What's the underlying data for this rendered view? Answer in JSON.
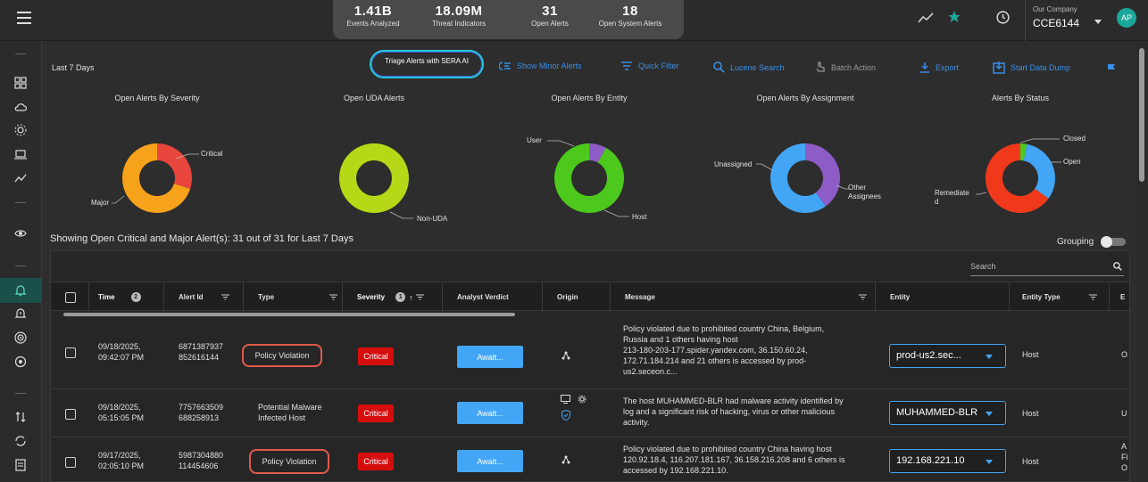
{
  "stats": [
    {
      "value": "1.41B",
      "label": "Events Analyzed"
    },
    {
      "value": "18.09M",
      "label": "Threat Indicators"
    },
    {
      "value": "31",
      "label": "Open Alerts"
    },
    {
      "value": "18",
      "label": "Open System Alerts"
    }
  ],
  "company": {
    "label": "Our Company",
    "value": "CCE6144"
  },
  "user": {
    "initials": "AP"
  },
  "colors": {
    "accent": "#42a5f5",
    "critical": "#d50d0d",
    "brand": "#1aa89a"
  },
  "toolbar": {
    "period": "Last 7 Days",
    "triage": "Triage Alerts with SERA AI",
    "show_minor": "Show Minor Alerts",
    "quick_filter": "Quick Filter",
    "lucene": "Lucene Search",
    "batch": "Batch Action",
    "export": "Export",
    "dump": "Start Data Dump"
  },
  "charts": {
    "severity": {
      "title": "Open Alerts By Severity",
      "labels": [
        "Critical",
        "Major"
      ]
    },
    "uda": {
      "title": "Open UDA Alerts",
      "labels": [
        "Non-UDA"
      ]
    },
    "entity": {
      "title": "Open Alerts By Entity",
      "labels": [
        "User",
        "Host"
      ]
    },
    "assignment": {
      "title": "Open Alerts By Assignment",
      "labels": [
        "Unassigned",
        "Other",
        "Assignees"
      ]
    },
    "status": {
      "title": "Alerts By Status",
      "labels": [
        "Closed",
        "Open",
        "Remediate",
        "d"
      ]
    }
  },
  "chart_data": [
    {
      "type": "pie",
      "categories": [
        "Critical",
        "Major"
      ],
      "values": [
        30,
        70
      ],
      "colors": [
        "#e8453c",
        "#f7a21b"
      ]
    },
    {
      "type": "pie",
      "categories": [
        "Non-UDA"
      ],
      "values": [
        100
      ],
      "colors": [
        "#b5d916"
      ]
    },
    {
      "type": "pie",
      "categories": [
        "User",
        "Host"
      ],
      "values": [
        8,
        92
      ],
      "colors": [
        "#8e5cc7",
        "#4cc91c"
      ]
    },
    {
      "type": "pie",
      "categories": [
        "Unassigned",
        "Other Assignees"
      ],
      "values": [
        40,
        60
      ],
      "colors": [
        "#8e5cc7",
        "#42a5f5"
      ]
    },
    {
      "type": "pie",
      "categories": [
        "Closed",
        "Open",
        "Remediated"
      ],
      "values": [
        3,
        32,
        65
      ],
      "colors": [
        "#4cc91c",
        "#42a5f5",
        "#f0391b"
      ]
    }
  ],
  "summary": "Showing Open Critical and Major Alert(s): 31 out of 31 for Last 7 Days",
  "grouping": "Grouping",
  "search_placeholder": "Search",
  "columns": {
    "time": "Time",
    "time_badge": "2",
    "alert_id": "Alert Id",
    "type": "Type",
    "severity": "Severity",
    "severity_badge": "1",
    "verdict": "Analyst Verdict",
    "origin": "Origin",
    "message": "Message",
    "entity": "Entity",
    "entity_type": "Entity Type",
    "more": "E"
  },
  "rows": [
    {
      "time": [
        "09/18/2025,",
        "09:42:07 PM"
      ],
      "id": [
        "6871387937",
        "852616144"
      ],
      "type": "Policy Violation",
      "severity": "Critical",
      "verdict": "Await...",
      "message": [
        "Policy violated due to prohibited country China, Belgium,",
        "Russia and 1 others having host",
        "213-180-203-177.spider.yandex.com, 36.150.60.24,",
        "172.71.184.214 and 21 others is accessed by prod-",
        "us2.seceon.c..."
      ],
      "entity": "prod-us2.sec...",
      "entity_type": "Host",
      "more": "O"
    },
    {
      "time": [
        "09/18/2025,",
        "05:15:05 PM"
      ],
      "id": [
        "7757663509",
        "688258913"
      ],
      "type": "Potential Malware Infected Host",
      "type_lines": [
        "Potential Malware",
        "Infected Host"
      ],
      "severity": "Critical",
      "verdict": "Await...",
      "message": [
        "The host MUHAMMED-BLR had malware activity identified by",
        "log and a significant risk of hacking, virus or other malicious",
        "activity."
      ],
      "entity": "MUHAMMED-BLR",
      "entity_type": "Host",
      "more": "U"
    },
    {
      "time": [
        "09/17/2025,",
        "02:05:10 PM"
      ],
      "id": [
        "5987304880",
        "114454606"
      ],
      "type": "Policy Violation",
      "severity": "Critical",
      "verdict": "Await...",
      "message": [
        "Policy violated due to prohibited country China having host",
        "120.92.18.4, 116.207.181.167, 36.158.216.208 and 6 others is",
        "accessed by 192.168.221.10."
      ],
      "entity": "192.168.221.10",
      "entity_type": "Host",
      "more": [
        "A",
        "Fi",
        "O"
      ]
    }
  ]
}
